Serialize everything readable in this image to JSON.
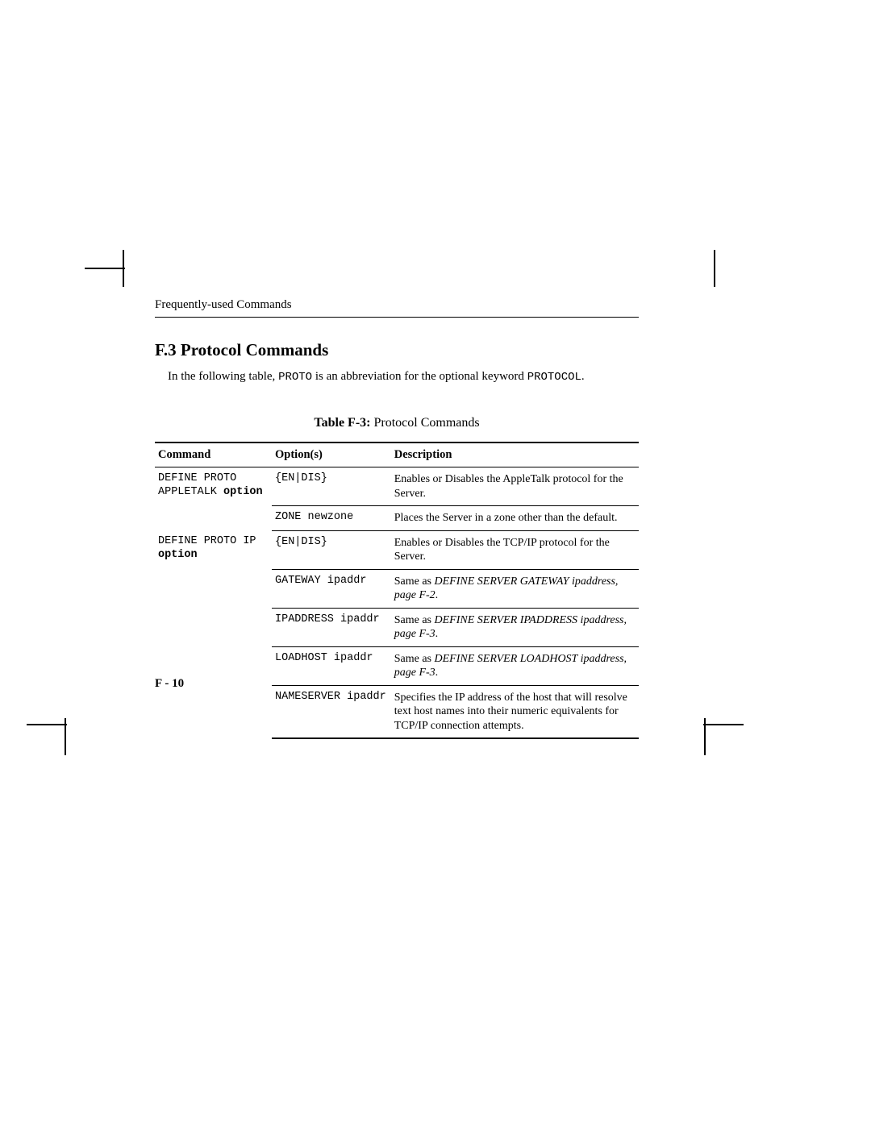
{
  "page": {
    "running_head": "Frequently-used Commands",
    "section_heading": "F.3 Protocol Commands",
    "intro_prefix": "In the following table, ",
    "intro_code1": "PROTO",
    "intro_mid": " is an abbreviation for the optional keyword ",
    "intro_code2": "PROTOCOL",
    "intro_suffix": ".",
    "table_caption_bold": "Table F-3:",
    "table_caption_rest": "  Protocol Commands",
    "page_number": "F - 10"
  },
  "table": {
    "headers": {
      "c1": "Command",
      "c2": "Option(s)",
      "c3": "Description"
    },
    "rows": [
      {
        "cmd_line1": "DEFINE PROTO",
        "cmd_line2a": "APPLETALK ",
        "cmd_line2b": "option",
        "opt": "{EN|DIS}",
        "desc": "Enables or Disables the AppleTalk protocol for the Server."
      },
      {
        "cmd_line1": "",
        "cmd_line2a": "",
        "cmd_line2b": "",
        "opt": "ZONE newzone",
        "desc": "Places the Server in a zone other than the default."
      },
      {
        "cmd_line1": "DEFINE PROTO IP",
        "cmd_line2a": "",
        "cmd_line2b": "option",
        "opt": "{EN|DIS}",
        "desc": "Enables or Disables the TCP/IP protocol for the Server."
      },
      {
        "cmd_line1": "",
        "cmd_line2a": "",
        "cmd_line2b": "",
        "opt": "GATEWAY ipaddr",
        "desc_prefix": "Same as ",
        "desc_ital": "DEFINE SERVER GATEWAY ipaddress, page F-2",
        "desc_suffix": "."
      },
      {
        "cmd_line1": "",
        "cmd_line2a": "",
        "cmd_line2b": "",
        "opt": "IPADDRESS ipaddr",
        "desc_prefix": "Same as ",
        "desc_ital": "DEFINE SERVER IPADDRESS ipaddress, page F-3",
        "desc_suffix": "."
      },
      {
        "cmd_line1": "",
        "cmd_line2a": "",
        "cmd_line2b": "",
        "opt": "LOADHOST ipaddr",
        "desc_prefix": "Same as ",
        "desc_ital": "DEFINE SERVER LOADHOST ipaddress, page F-3",
        "desc_suffix": "."
      },
      {
        "cmd_line1": "",
        "cmd_line2a": "",
        "cmd_line2b": "",
        "opt": "NAMESERVER ipaddr",
        "desc": "Specifies the IP address of the host that will resolve text host names into their numeric equivalents for TCP/IP connection attempts."
      }
    ]
  }
}
